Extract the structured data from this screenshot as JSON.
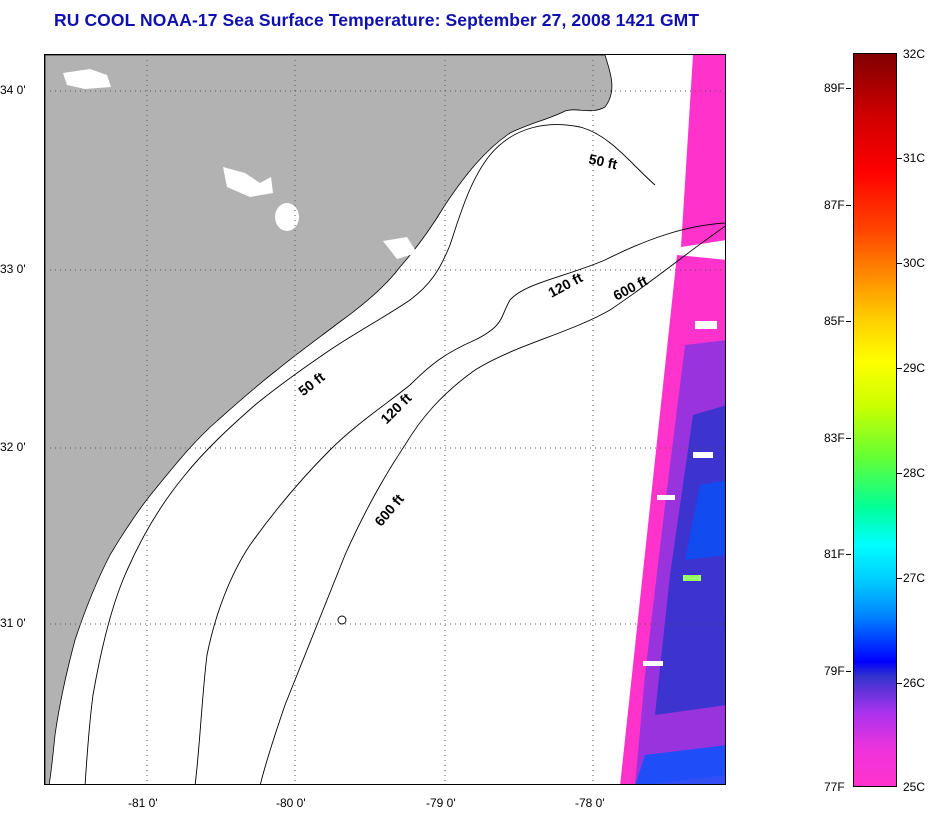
{
  "title": "RU COOL  NOAA-17  Sea Surface Temperature:  September 27, 2008 1421 GMT",
  "map": {
    "lat_labels": [
      "34 0'",
      "33 0'",
      "32 0'",
      "31 0'"
    ],
    "lon_labels": [
      "-81 0'",
      "-80 0'",
      "-79 0'",
      "-78 0'"
    ],
    "contour_labels": [
      "50 ft",
      "120 ft",
      "600 ft",
      "50 ft",
      "120 ft",
      "600 ft"
    ],
    "land_color": "#b2b2b2",
    "contour_color": "#000000"
  },
  "colorbar": {
    "celsius_labels": [
      "32C",
      "31C",
      "30C",
      "29C",
      "28C",
      "27C",
      "26C",
      "25C"
    ],
    "fahrenheit_labels": [
      "89F",
      "87F",
      "85F",
      "83F",
      "81F",
      "79F",
      "77F"
    ]
  }
}
